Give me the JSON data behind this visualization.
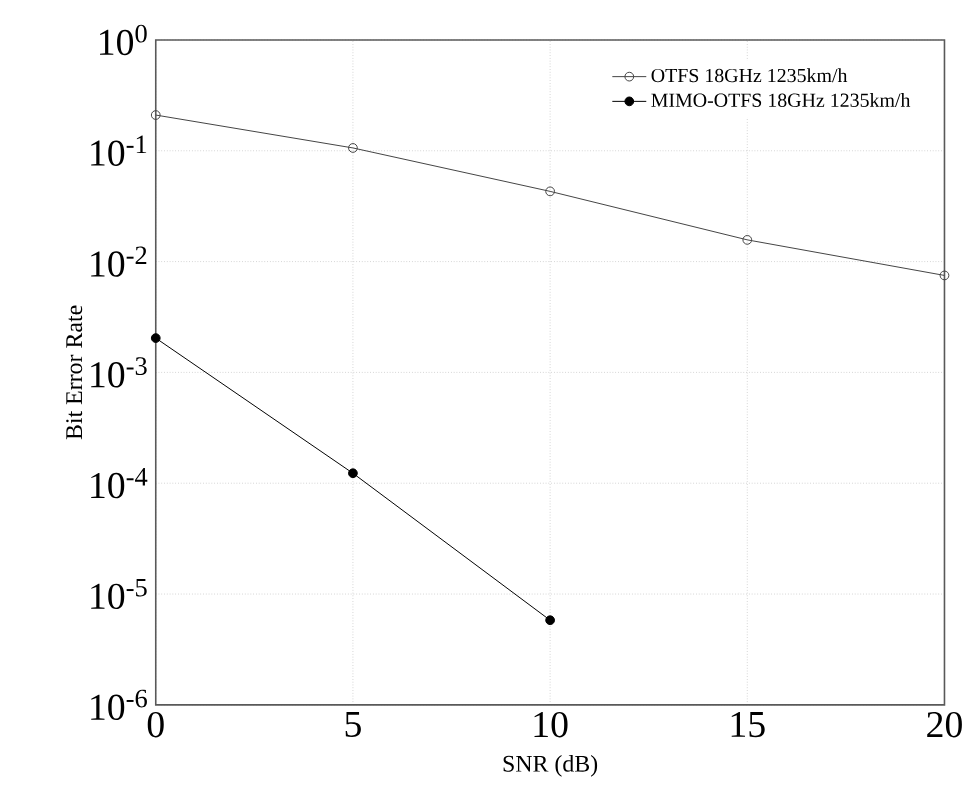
{
  "chart_data": {
    "type": "line",
    "xlabel": "SNR (dB)",
    "ylabel": "Bit Error Rate",
    "log": "y",
    "grid": true,
    "legend": "top right",
    "line_style": "solid",
    "x": [
      0,
      5,
      10,
      15,
      20
    ],
    "xlim": [
      0,
      20
    ],
    "xticks": [
      0,
      5,
      10,
      15,
      20
    ],
    "ylim": [
      1e-06,
      1
    ],
    "yticks": [
      {
        "value": 1e-06,
        "label": "10$^{-6}$"
      },
      {
        "value": 1e-05,
        "label": "10$^{-5}$"
      },
      {
        "value": 0.0001,
        "label": "10$^{-4}$"
      },
      {
        "value": 0.001,
        "label": "10$^{-3}$"
      },
      {
        "value": 0.01,
        "label": "10$^{-2}$"
      },
      {
        "value": 0.1,
        "label": "10$^{-1}$"
      },
      {
        "value": 1,
        "label": "10$^{0}$"
      }
    ],
    "series": [
      {
        "name": "OTFS 18GHz 1235km/h",
        "color": "#444444",
        "marker": "open circle",
        "values": [
          0.21,
          0.106,
          0.043,
          0.0157,
          0.0075
        ]
      },
      {
        "name": "MIMO-OTFS 18GHz 1235km/h",
        "color": "#000000",
        "marker": "circle",
        "x": [
          0,
          5,
          10
        ],
        "values": [
          0.00204,
          0.000123,
          5.8e-06
        ]
      }
    ]
  }
}
